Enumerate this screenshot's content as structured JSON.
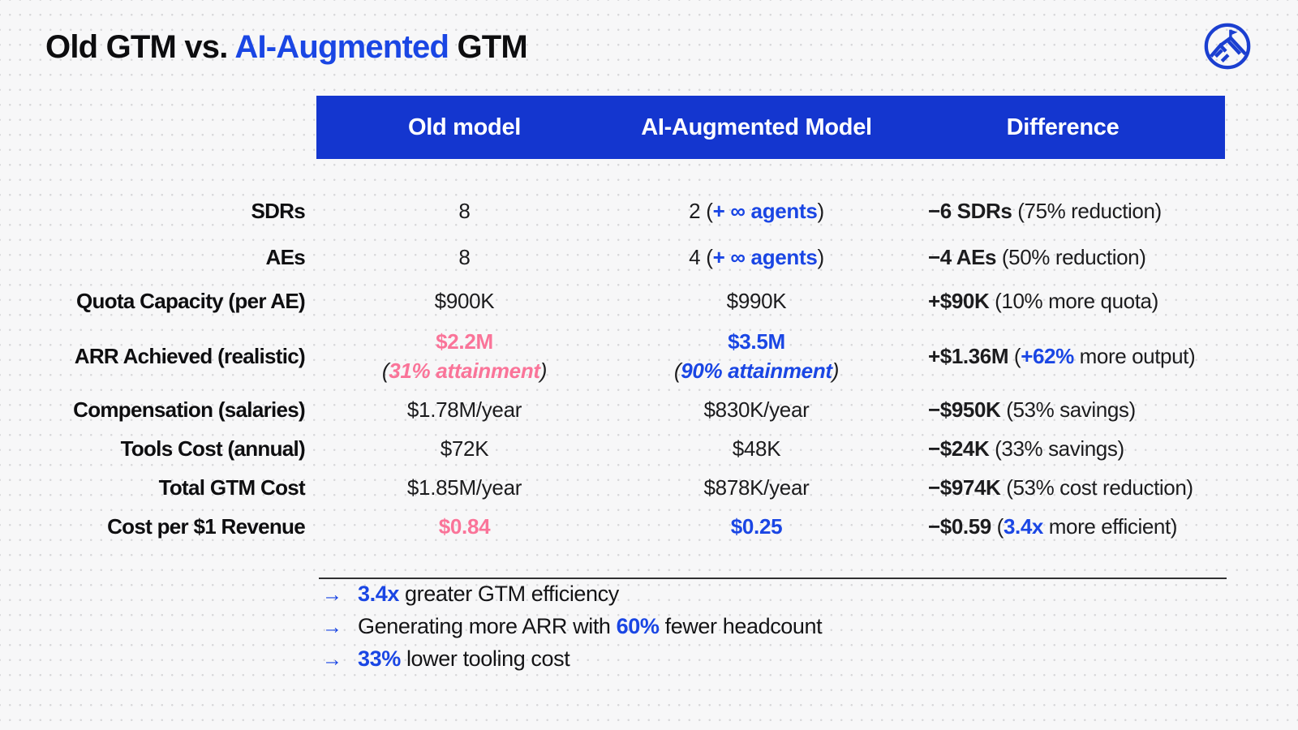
{
  "colors": {
    "bar_blue": "#1436cf",
    "accent_blue": "#1a46e4",
    "pink": "#fa7499",
    "logo_blue": "#1b3fd0",
    "background": "#f7f7f8",
    "dot_grid": "#d7d7da",
    "header_text": "#ffffff",
    "ink": "#0e0e10",
    "divider": "#2f2f31"
  },
  "title": {
    "segments": [
      {
        "t": "Old GTM vs. "
      },
      {
        "t": "AI-Augmented",
        "c": "blue"
      },
      {
        "t": " GTM"
      }
    ]
  },
  "icons": {
    "arrow_right": "→",
    "logo": "mountain-summit-flag"
  },
  "table": {
    "columns": [
      "Old model",
      "AI-Augmented Model",
      "Difference"
    ],
    "rows": [
      {
        "label": "SDRs",
        "old": [
          {
            "t": "8"
          }
        ],
        "ai": [
          {
            "t": "2 ("
          },
          {
            "t": "+ ∞ agents",
            "c": "blue b"
          },
          {
            "t": ")"
          }
        ],
        "diff": [
          {
            "t": "−6 SDRs",
            "c": "b"
          },
          {
            "t": " (75% reduction)"
          }
        ]
      },
      {
        "label": "AEs",
        "old": [
          {
            "t": "8"
          }
        ],
        "ai": [
          {
            "t": "4 ("
          },
          {
            "t": "+ ∞ agents",
            "c": "blue b"
          },
          {
            "t": ")"
          }
        ],
        "diff": [
          {
            "t": "−4 AEs",
            "c": "b"
          },
          {
            "t": " (50% reduction)"
          }
        ]
      },
      {
        "label": "Quota Capacity (per AE)",
        "old": [
          {
            "t": "$900K"
          }
        ],
        "ai": [
          {
            "t": "$990K"
          }
        ],
        "diff": [
          {
            "t": "+$90K",
            "c": "b"
          },
          {
            "t": " (10% more quota)"
          }
        ]
      },
      {
        "label": "ARR Achieved (realistic)",
        "old": [
          {
            "t": "$2.2M",
            "c": "pink b"
          },
          {
            "br": true
          },
          {
            "t": "(",
            "c": "i"
          },
          {
            "t": "31% attainment",
            "c": "pink b i"
          },
          {
            "t": ")",
            "c": "i"
          }
        ],
        "ai": [
          {
            "t": "$3.5M",
            "c": "blue b"
          },
          {
            "br": true
          },
          {
            "t": "(",
            "c": "i"
          },
          {
            "t": "90% attainment",
            "c": "blue b i"
          },
          {
            "t": ")",
            "c": "i"
          }
        ],
        "diff": [
          {
            "t": "+$1.36M",
            "c": "b"
          },
          {
            "t": " ("
          },
          {
            "t": "+62%",
            "c": "blue b"
          },
          {
            "t": " more output)"
          }
        ]
      },
      {
        "label": "Compensation (salaries)",
        "old": [
          {
            "t": "$1.78M/year"
          }
        ],
        "ai": [
          {
            "t": "$830K/year"
          }
        ],
        "diff": [
          {
            "t": "−$950K",
            "c": "b"
          },
          {
            "t": " (53% savings)"
          }
        ]
      },
      {
        "label": "Tools Cost (annual)",
        "old": [
          {
            "t": "$72K"
          }
        ],
        "ai": [
          {
            "t": "$48K"
          }
        ],
        "diff": [
          {
            "t": "−$24K",
            "c": "b"
          },
          {
            "t": " (33% savings)"
          }
        ]
      },
      {
        "label": "Total GTM Cost",
        "old": [
          {
            "t": "$1.85M/year"
          }
        ],
        "ai": [
          {
            "t": "$878K/year"
          }
        ],
        "diff": [
          {
            "t": "−$974K",
            "c": "b"
          },
          {
            "t": " (53% cost reduction)"
          }
        ]
      },
      {
        "label": "Cost per $1 Revenue",
        "old": [
          {
            "t": "$0.84",
            "c": "pink b"
          }
        ],
        "ai": [
          {
            "t": "$0.25",
            "c": "blue b"
          }
        ],
        "diff": [
          {
            "t": "−$0.59",
            "c": "b"
          },
          {
            "t": " ("
          },
          {
            "t": "3.4x",
            "c": "blue b"
          },
          {
            "t": " more efficient)"
          }
        ]
      }
    ]
  },
  "takeaways": [
    {
      "segments": [
        {
          "t": "3.4x",
          "c": "blue b"
        },
        {
          "t": " greater GTM efficiency"
        }
      ]
    },
    {
      "segments": [
        {
          "t": "Generating more ARR with "
        },
        {
          "t": "60%",
          "c": "blue b"
        },
        {
          "t": " fewer headcount"
        }
      ]
    },
    {
      "segments": [
        {
          "t": "33%",
          "c": "blue b"
        },
        {
          "t": " lower tooling cost"
        }
      ]
    }
  ]
}
